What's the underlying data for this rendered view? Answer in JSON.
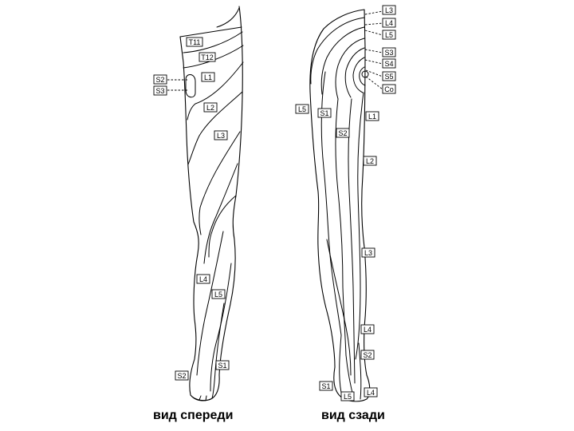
{
  "captions": {
    "front": "вид спереди",
    "back": "вид сзади"
  },
  "front_labels": {
    "t11": "T11",
    "t12": "T12",
    "l1": "L1",
    "s2_top": "S2",
    "s3": "S3",
    "l2": "L2",
    "l3": "L3",
    "l4": "L4",
    "l5": "L5",
    "s1": "S1",
    "s2_bottom": "S2"
  },
  "back_labels": {
    "l3_top": "L3",
    "l4_top": "L4",
    "l5_top": "L5",
    "s3": "S3",
    "s4": "S4",
    "s5": "S5",
    "co": "Co",
    "l5_side": "L5",
    "s1_thigh": "S1",
    "s2_thigh": "S2",
    "l1": "L1",
    "l2": "L2",
    "l3_calf": "L3",
    "l4_ankle": "L4",
    "s2_ankle": "S2",
    "s1_foot": "S1",
    "l5_foot": "L5",
    "l4_foot": "L4"
  }
}
